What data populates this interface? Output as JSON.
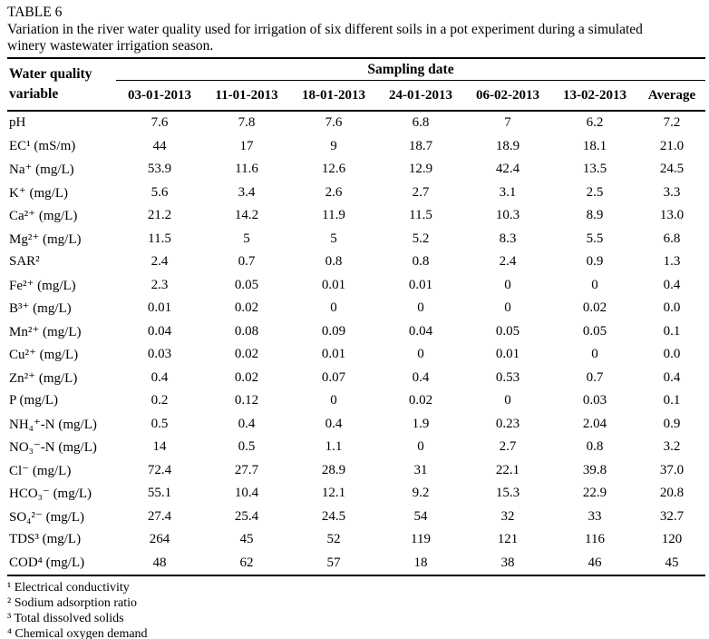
{
  "title": "TABLE 6",
  "caption": "Variation in the river water quality used for irrigation of six different soils in a pot experiment during a simulated winery wastewater irrigation season.",
  "table": {
    "row_header": "Water quality variable",
    "group_header": "Sampling date",
    "columns": [
      "03-01-2013",
      "11-01-2013",
      "18-01-2013",
      "24-01-2013",
      "06-02-2013",
      "13-02-2013",
      "Average"
    ],
    "rows": [
      {
        "label": "pH",
        "values": [
          "7.6",
          "7.8",
          "7.6",
          "6.8",
          "7",
          "6.2",
          "7.2"
        ]
      },
      {
        "label": "EC¹ (mS/m)",
        "values": [
          "44",
          "17",
          "9",
          "18.7",
          "18.9",
          "18.1",
          "21.0"
        ]
      },
      {
        "label": "Na⁺ (mg/L)",
        "values": [
          "53.9",
          "11.6",
          "12.6",
          "12.9",
          "42.4",
          "13.5",
          "24.5"
        ]
      },
      {
        "label": "K⁺ (mg/L)",
        "values": [
          "5.6",
          "3.4",
          "2.6",
          "2.7",
          "3.1",
          "2.5",
          "3.3"
        ]
      },
      {
        "label": "Ca²⁺ (mg/L)",
        "values": [
          "21.2",
          "14.2",
          "11.9",
          "11.5",
          "10.3",
          "8.9",
          "13.0"
        ]
      },
      {
        "label": "Mg²⁺ (mg/L)",
        "values": [
          "11.5",
          "5",
          "5",
          "5.2",
          "8.3",
          "5.5",
          "6.8"
        ]
      },
      {
        "label": "SAR²",
        "values": [
          "2.4",
          "0.7",
          "0.8",
          "0.8",
          "2.4",
          "0.9",
          "1.3"
        ]
      },
      {
        "label": "Fe²⁺ (mg/L)",
        "values": [
          "2.3",
          "0.05",
          "0.01",
          "0.01",
          "0",
          "0",
          "0.4"
        ]
      },
      {
        "label": "B³⁺ (mg/L)",
        "values": [
          "0.01",
          "0.02",
          "0",
          "0",
          "0",
          "0.02",
          "0.0"
        ]
      },
      {
        "label": "Mn²⁺ (mg/L)",
        "values": [
          "0.04",
          "0.08",
          "0.09",
          "0.04",
          "0.05",
          "0.05",
          "0.1"
        ]
      },
      {
        "label": "Cu²⁺ (mg/L)",
        "values": [
          "0.03",
          "0.02",
          "0.01",
          "0",
          "0.01",
          "0",
          "0.0"
        ]
      },
      {
        "label": "Zn²⁺ (mg/L)",
        "values": [
          "0.4",
          "0.02",
          "0.07",
          "0.4",
          "0.53",
          "0.7",
          "0.4"
        ]
      },
      {
        "label": "P (mg/L)",
        "values": [
          "0.2",
          "0.12",
          "0",
          "0.02",
          "0",
          "0.03",
          "0.1"
        ]
      },
      {
        "label": "NH₄⁺-N (mg/L)",
        "values": [
          "0.5",
          "0.4",
          "0.4",
          "1.9",
          "0.23",
          "2.04",
          "0.9"
        ]
      },
      {
        "label": "NO₃⁻-N (mg/L)",
        "values": [
          "14",
          "0.5",
          "1.1",
          "0",
          "2.7",
          "0.8",
          "3.2"
        ]
      },
      {
        "label": "Cl⁻ (mg/L)",
        "values": [
          "72.4",
          "27.7",
          "28.9",
          "31",
          "22.1",
          "39.8",
          "37.0"
        ]
      },
      {
        "label": "HCO₃⁻ (mg/L)",
        "values": [
          "55.1",
          "10.4",
          "12.1",
          "9.2",
          "15.3",
          "22.9",
          "20.8"
        ]
      },
      {
        "label": "SO₄²⁻ (mg/L)",
        "values": [
          "27.4",
          "25.4",
          "24.5",
          "54",
          "32",
          "33",
          "32.7"
        ]
      },
      {
        "label": "TDS³ (mg/L)",
        "values": [
          "264",
          "45",
          "52",
          "119",
          "121",
          "116",
          "120"
        ]
      },
      {
        "label": "COD⁴ (mg/L)",
        "values": [
          "48",
          "62",
          "57",
          "18",
          "38",
          "46",
          "45"
        ]
      }
    ]
  },
  "footnotes": [
    "¹ Electrical conductivity",
    "² Sodium adsorption ratio",
    "³ Total dissolved solids",
    "⁴ Chemical oxygen demand"
  ]
}
